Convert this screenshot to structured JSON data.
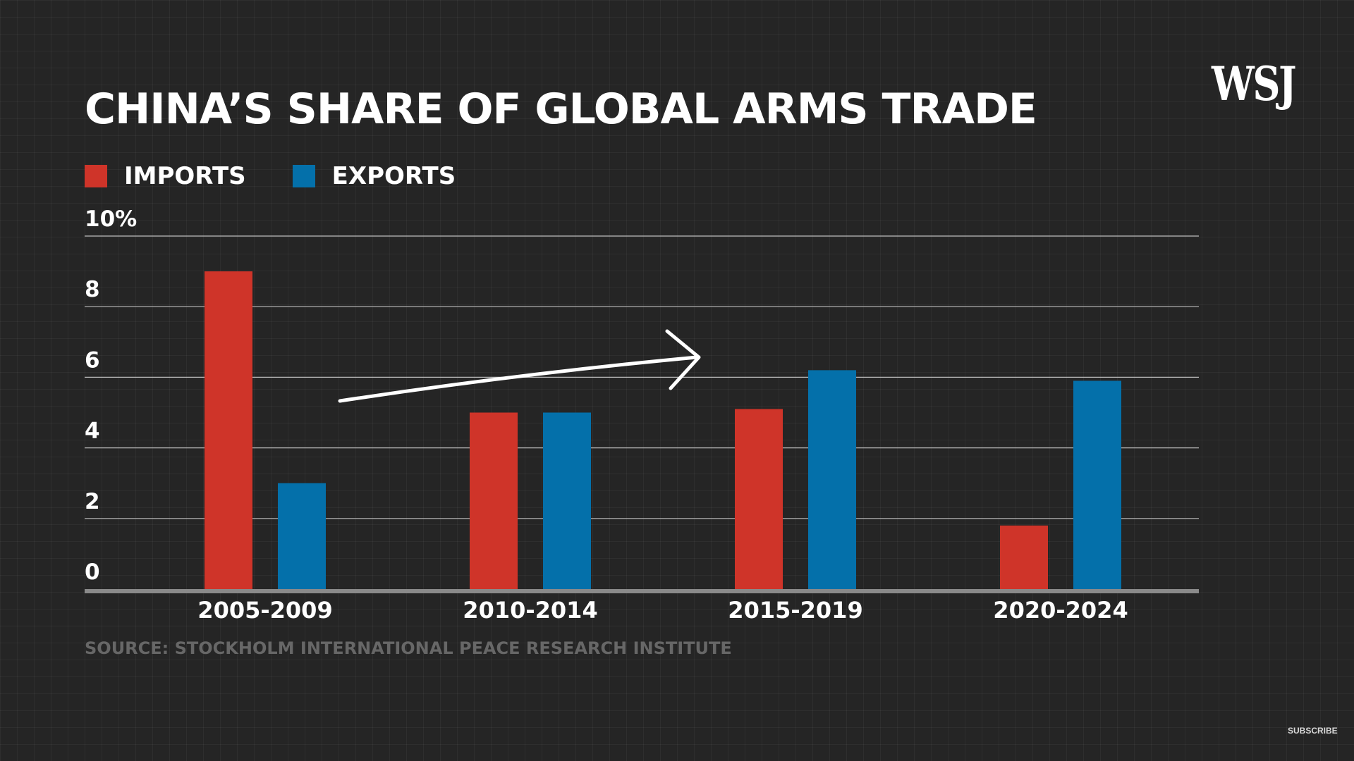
{
  "header": {
    "title": "CHINA’S SHARE OF GLOBAL ARMS TRADE",
    "logo": "WSJ"
  },
  "legend": {
    "items": [
      {
        "label": "IMPORTS",
        "color": "#cf3429"
      },
      {
        "label": "EXPORTS",
        "color": "#0470aa"
      }
    ]
  },
  "footer": {
    "source": "SOURCE: STOCKHOLM INTERNATIONAL PEACE RESEARCH INSTITUTE",
    "subscribe": "SUBSCRIBE"
  },
  "chart_data": {
    "type": "bar",
    "title": "CHINA’S SHARE OF GLOBAL ARMS TRADE",
    "categories": [
      "2005-2009",
      "2010-2014",
      "2015-2019",
      "2020-2024"
    ],
    "series": [
      {
        "name": "IMPORTS",
        "color": "#cf3429",
        "values": [
          9.0,
          5.0,
          5.1,
          1.8
        ]
      },
      {
        "name": "EXPORTS",
        "color": "#0470aa",
        "values": [
          3.0,
          5.0,
          6.2,
          5.9
        ]
      }
    ],
    "ylim": [
      0,
      10
    ],
    "y_ticks": [
      "0",
      "2",
      "4",
      "6",
      "8",
      "10%"
    ],
    "y_tick_values": [
      0,
      2,
      4,
      6,
      8,
      10
    ],
    "grid": true,
    "legend_position": "top-left",
    "annotation": "upward-trend-arrow",
    "source": "SOURCE: STOCKHOLM INTERNATIONAL PEACE RESEARCH INSTITUTE"
  }
}
